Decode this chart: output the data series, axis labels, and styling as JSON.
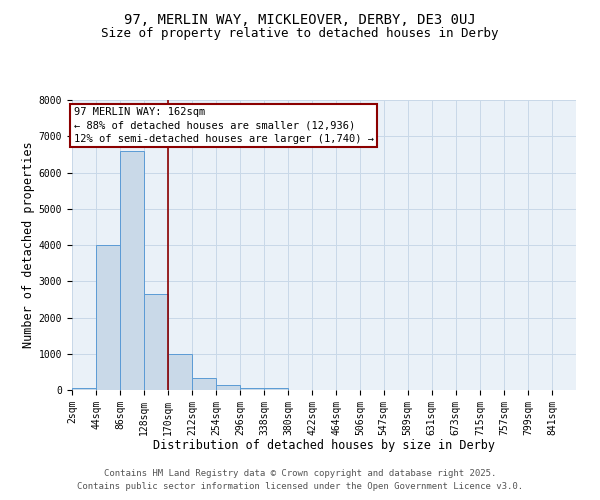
{
  "title": "97, MERLIN WAY, MICKLEOVER, DERBY, DE3 0UJ",
  "subtitle": "Size of property relative to detached houses in Derby",
  "xlabel": "Distribution of detached houses by size in Derby",
  "ylabel": "Number of detached properties",
  "bins": [
    2,
    44,
    86,
    128,
    170,
    212,
    254,
    296,
    338,
    380,
    422,
    464,
    506,
    547,
    589,
    631,
    673,
    715,
    757,
    799,
    841
  ],
  "counts": [
    50,
    4000,
    6600,
    2650,
    1000,
    340,
    130,
    60,
    50,
    10,
    5,
    0,
    0,
    0,
    0,
    0,
    0,
    0,
    0,
    0
  ],
  "bar_color": "#c9d9e8",
  "bar_edge_color": "#5b9bd5",
  "vline_x": 170,
  "vline_color": "#8b0000",
  "annotation_text": "97 MERLIN WAY: 162sqm\n← 88% of detached houses are smaller (12,936)\n12% of semi-detached houses are larger (1,740) →",
  "annotation_box_color": "#8b0000",
  "ylim": [
    0,
    8000
  ],
  "yticks": [
    0,
    1000,
    2000,
    3000,
    4000,
    5000,
    6000,
    7000,
    8000
  ],
  "tick_labels": [
    "2sqm",
    "44sqm",
    "86sqm",
    "128sqm",
    "170sqm",
    "212sqm",
    "254sqm",
    "296sqm",
    "338sqm",
    "380sqm",
    "422sqm",
    "464sqm",
    "506sqm",
    "547sqm",
    "589sqm",
    "631sqm",
    "673sqm",
    "715sqm",
    "757sqm",
    "799sqm",
    "841sqm"
  ],
  "footer1": "Contains HM Land Registry data © Crown copyright and database right 2025.",
  "footer2": "Contains public sector information licensed under the Open Government Licence v3.0.",
  "bg_color": "#ffffff",
  "grid_color": "#c8d8e8",
  "title_fontsize": 10,
  "subtitle_fontsize": 9,
  "axis_fontsize": 8.5,
  "tick_fontsize": 7,
  "annot_fontsize": 7.5,
  "footer_fontsize": 6.5
}
